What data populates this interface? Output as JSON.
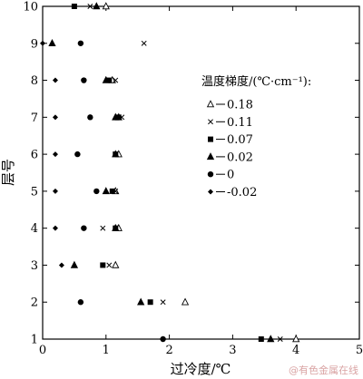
{
  "chart_data": {
    "type": "scatter",
    "xlabel": "过冷度/℃",
    "ylabel": "层号",
    "xlim": [
      0,
      5
    ],
    "ylim": [
      1,
      10
    ],
    "xticks": [
      "0",
      "1",
      "2",
      "3",
      "4",
      "5"
    ],
    "yticks": [
      "1",
      "2",
      "3",
      "4",
      "5",
      "6",
      "7",
      "8",
      "9",
      "10"
    ],
    "legend": {
      "title": "温度梯度/(℃·cm⁻¹):",
      "position": "right"
    },
    "series": [
      {
        "name": "0.18",
        "marker": "triangle-open",
        "x": [
          4.0,
          2.25,
          1.15,
          1.2,
          1.15,
          1.2,
          1.2,
          1.1,
          1.0
        ],
        "y": [
          1,
          2,
          3,
          4,
          5,
          6,
          7,
          8,
          10
        ]
      },
      {
        "name": "0.11",
        "marker": "x",
        "x": [
          3.75,
          1.9,
          1.05,
          0.95,
          1.15,
          1.15,
          1.25,
          1.15,
          1.6,
          0.75
        ],
        "y": [
          1,
          2,
          3,
          4,
          5,
          6,
          7,
          8,
          9,
          10
        ]
      },
      {
        "name": "0.07",
        "marker": "square-filled",
        "x": [
          3.45,
          1.7,
          0.95,
          1.15,
          1.1,
          1.15,
          1.2,
          1.05,
          0.5
        ],
        "y": [
          1,
          2,
          3,
          4,
          5,
          6,
          7,
          8,
          10
        ]
      },
      {
        "name": "0.02",
        "marker": "triangle-filled",
        "x": [
          3.6,
          1.55,
          0.5,
          1.15,
          1.0,
          1.15,
          1.15,
          1.0,
          0.15,
          0.85
        ],
        "y": [
          1,
          2,
          3,
          4,
          5,
          6,
          7,
          8,
          9,
          10
        ]
      },
      {
        "name": "0",
        "marker": "circle-filled",
        "x": [
          1.9,
          0.6,
          0.65,
          0.85,
          0.55,
          0.75,
          0.65,
          0.6
        ],
        "y": [
          1,
          2,
          4,
          5,
          6,
          7,
          8,
          9
        ]
      },
      {
        "name": "-0.02",
        "marker": "diamond-filled",
        "x": [
          0.3,
          0.2,
          0.2,
          0.2,
          0.2,
          0.2,
          0.0
        ],
        "y": [
          3,
          4,
          5,
          6,
          7,
          8,
          9
        ]
      }
    ]
  },
  "watermark": "@有色金属在线"
}
